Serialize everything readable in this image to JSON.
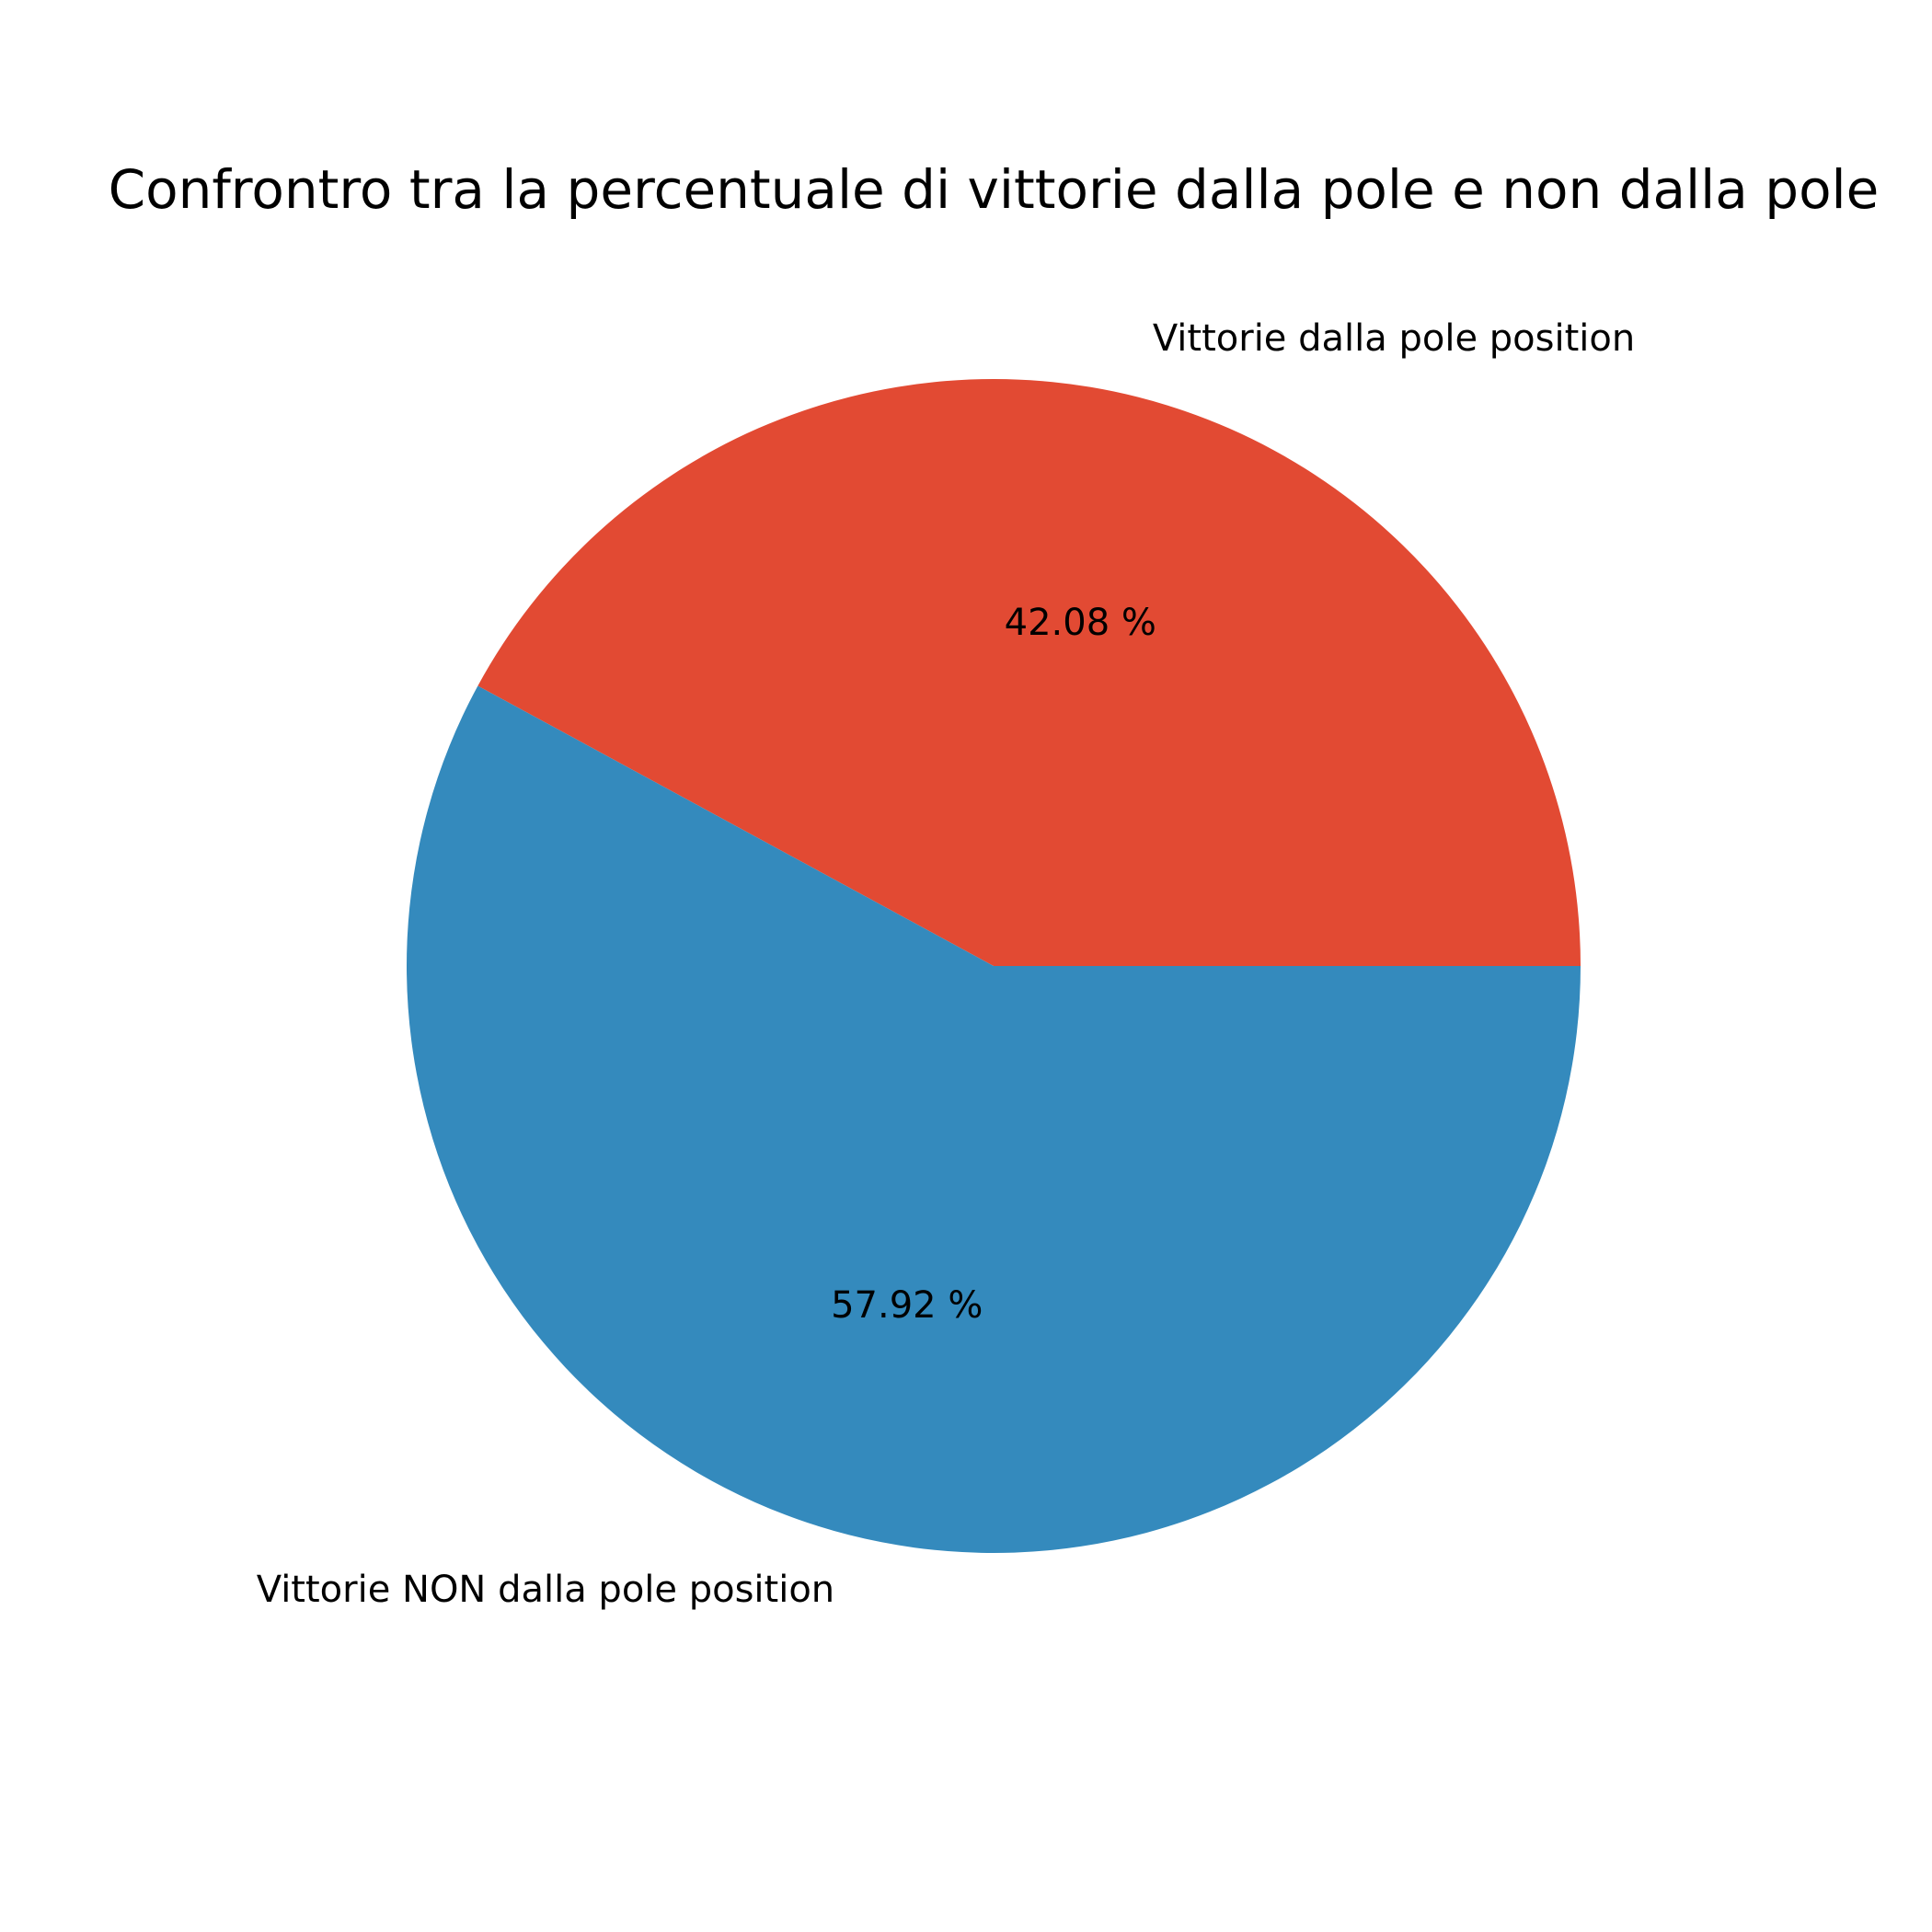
{
  "chart_data": {
    "type": "pie",
    "title": "Confrontro tra la percentuale di vittorie dalla pole e non dalla pole",
    "start_angle_deg": 0,
    "direction": "counterclockwise",
    "slices": [
      {
        "label": "Vittorie dalla pole position",
        "value": 42.08,
        "pct_label": "42.08 %",
        "color": "#E24A33"
      },
      {
        "label": "Vittorie NON dalla pole position",
        "value": 57.92,
        "pct_label": "57.92 %",
        "color": "#348ABD"
      }
    ]
  }
}
